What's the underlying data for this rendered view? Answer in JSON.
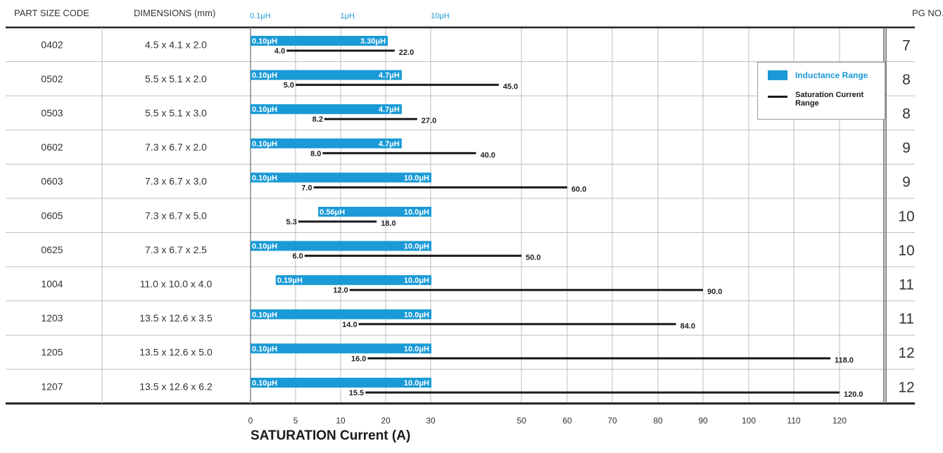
{
  "headers": {
    "part_size_code": "PART SIZE CODE",
    "dimensions": "DIMENSIONS (mm)",
    "pg_no": "PG NO."
  },
  "legend": {
    "inductance_label": "Inductance Range",
    "current_label": "Saturation Current Range"
  },
  "colors": {
    "inductance_bar": "#1a9ad6",
    "current_line": "#1a1a1a",
    "grid": "#bdbdbd"
  },
  "chart_data": {
    "type": "table",
    "columns": [
      "PART SIZE CODE",
      "DIMENSIONS (mm)",
      "Inductance Range",
      "Saturation Current Range",
      "PG NO."
    ],
    "xlabel": "SATURATION Current (A)",
    "x_ticks": [
      0,
      5,
      10,
      20,
      30,
      50,
      60,
      70,
      80,
      90,
      100,
      110,
      120
    ],
    "inductance_axis": {
      "scale": "log",
      "ticks": [
        "0.1μH",
        "1μH",
        "10μH"
      ],
      "tick_values": [
        0.1,
        1,
        10
      ]
    },
    "rows": [
      {
        "code": "0402",
        "dims": "4.5 x 4.1 x 2.0",
        "l_min": 0.1,
        "l_max": 3.3,
        "l_min_label": "0.10μH",
        "l_max_label": "3.30μH",
        "i_min": 4.0,
        "i_max": 22.0,
        "i_min_label": "4.0",
        "i_max_label": "22.0",
        "pg": "7"
      },
      {
        "code": "0502",
        "dims": "5.5 x 5.1 x 2.0",
        "l_min": 0.1,
        "l_max": 4.7,
        "l_min_label": "0.10μH",
        "l_max_label": "4.7μH",
        "i_min": 5.0,
        "i_max": 45.0,
        "i_min_label": "5.0",
        "i_max_label": "45.0",
        "pg": "8"
      },
      {
        "code": "0503",
        "dims": "5.5 x 5.1 x 3.0",
        "l_min": 0.1,
        "l_max": 4.7,
        "l_min_label": "0.10μH",
        "l_max_label": "4.7μH",
        "i_min": 8.2,
        "i_max": 27.0,
        "i_min_label": "8.2",
        "i_max_label": "27.0",
        "pg": "8"
      },
      {
        "code": "0602",
        "dims": "7.3 x 6.7 x 2.0",
        "l_min": 0.1,
        "l_max": 4.7,
        "l_min_label": "0.10μH",
        "l_max_label": "4.7μH",
        "i_min": 8.0,
        "i_max": 40.0,
        "i_min_label": "8.0",
        "i_max_label": "40.0",
        "pg": "9"
      },
      {
        "code": "0603",
        "dims": "7.3 x 6.7 x 3.0",
        "l_min": 0.1,
        "l_max": 10.0,
        "l_min_label": "0.10μH",
        "l_max_label": "10.0μH",
        "i_min": 7.0,
        "i_max": 60.0,
        "i_min_label": "7.0",
        "i_max_label": "60.0",
        "pg": "9"
      },
      {
        "code": "0605",
        "dims": "7.3 x 6.7 x 5.0",
        "l_min": 0.56,
        "l_max": 10.0,
        "l_min_label": "0.56μH",
        "l_max_label": "10.0μH",
        "i_min": 5.3,
        "i_max": 18.0,
        "i_min_label": "5.3",
        "i_max_label": "18.0",
        "pg": "10"
      },
      {
        "code": "0625",
        "dims": "7.3 x 6.7 x 2.5",
        "l_min": 0.1,
        "l_max": 10.0,
        "l_min_label": "0.10μH",
        "l_max_label": "10.0μH",
        "i_min": 6.0,
        "i_max": 50.0,
        "i_min_label": "6.0",
        "i_max_label": "50.0",
        "pg": "10"
      },
      {
        "code": "1004",
        "dims": "11.0 x 10.0 x 4.0",
        "l_min": 0.19,
        "l_max": 10.0,
        "l_min_label": "0.19μH",
        "l_max_label": "10.0μH",
        "i_min": 12.0,
        "i_max": 90.0,
        "i_min_label": "12.0",
        "i_max_label": "90.0",
        "pg": "11"
      },
      {
        "code": "1203",
        "dims": "13.5 x 12.6 x 3.5",
        "l_min": 0.1,
        "l_max": 10.0,
        "l_min_label": "0.10μH",
        "l_max_label": "10.0μH",
        "i_min": 14.0,
        "i_max": 84.0,
        "i_min_label": "14.0",
        "i_max_label": "84.0",
        "pg": "11"
      },
      {
        "code": "1205",
        "dims": "13.5 x 12.6 x 5.0",
        "l_min": 0.1,
        "l_max": 10.0,
        "l_min_label": "0.10μH",
        "l_max_label": "10.0μH",
        "i_min": 16.0,
        "i_max": 118.0,
        "i_min_label": "16.0",
        "i_max_label": "118.0",
        "pg": "12"
      },
      {
        "code": "1207",
        "dims": "13.5 x 12.6 x 6.2",
        "l_min": 0.1,
        "l_max": 10.0,
        "l_min_label": "0.10μH",
        "l_max_label": "10.0μH",
        "i_min": 15.5,
        "i_max": 120.0,
        "i_min_label": "15.5",
        "i_max_label": "120.0",
        "pg": "12"
      }
    ]
  }
}
